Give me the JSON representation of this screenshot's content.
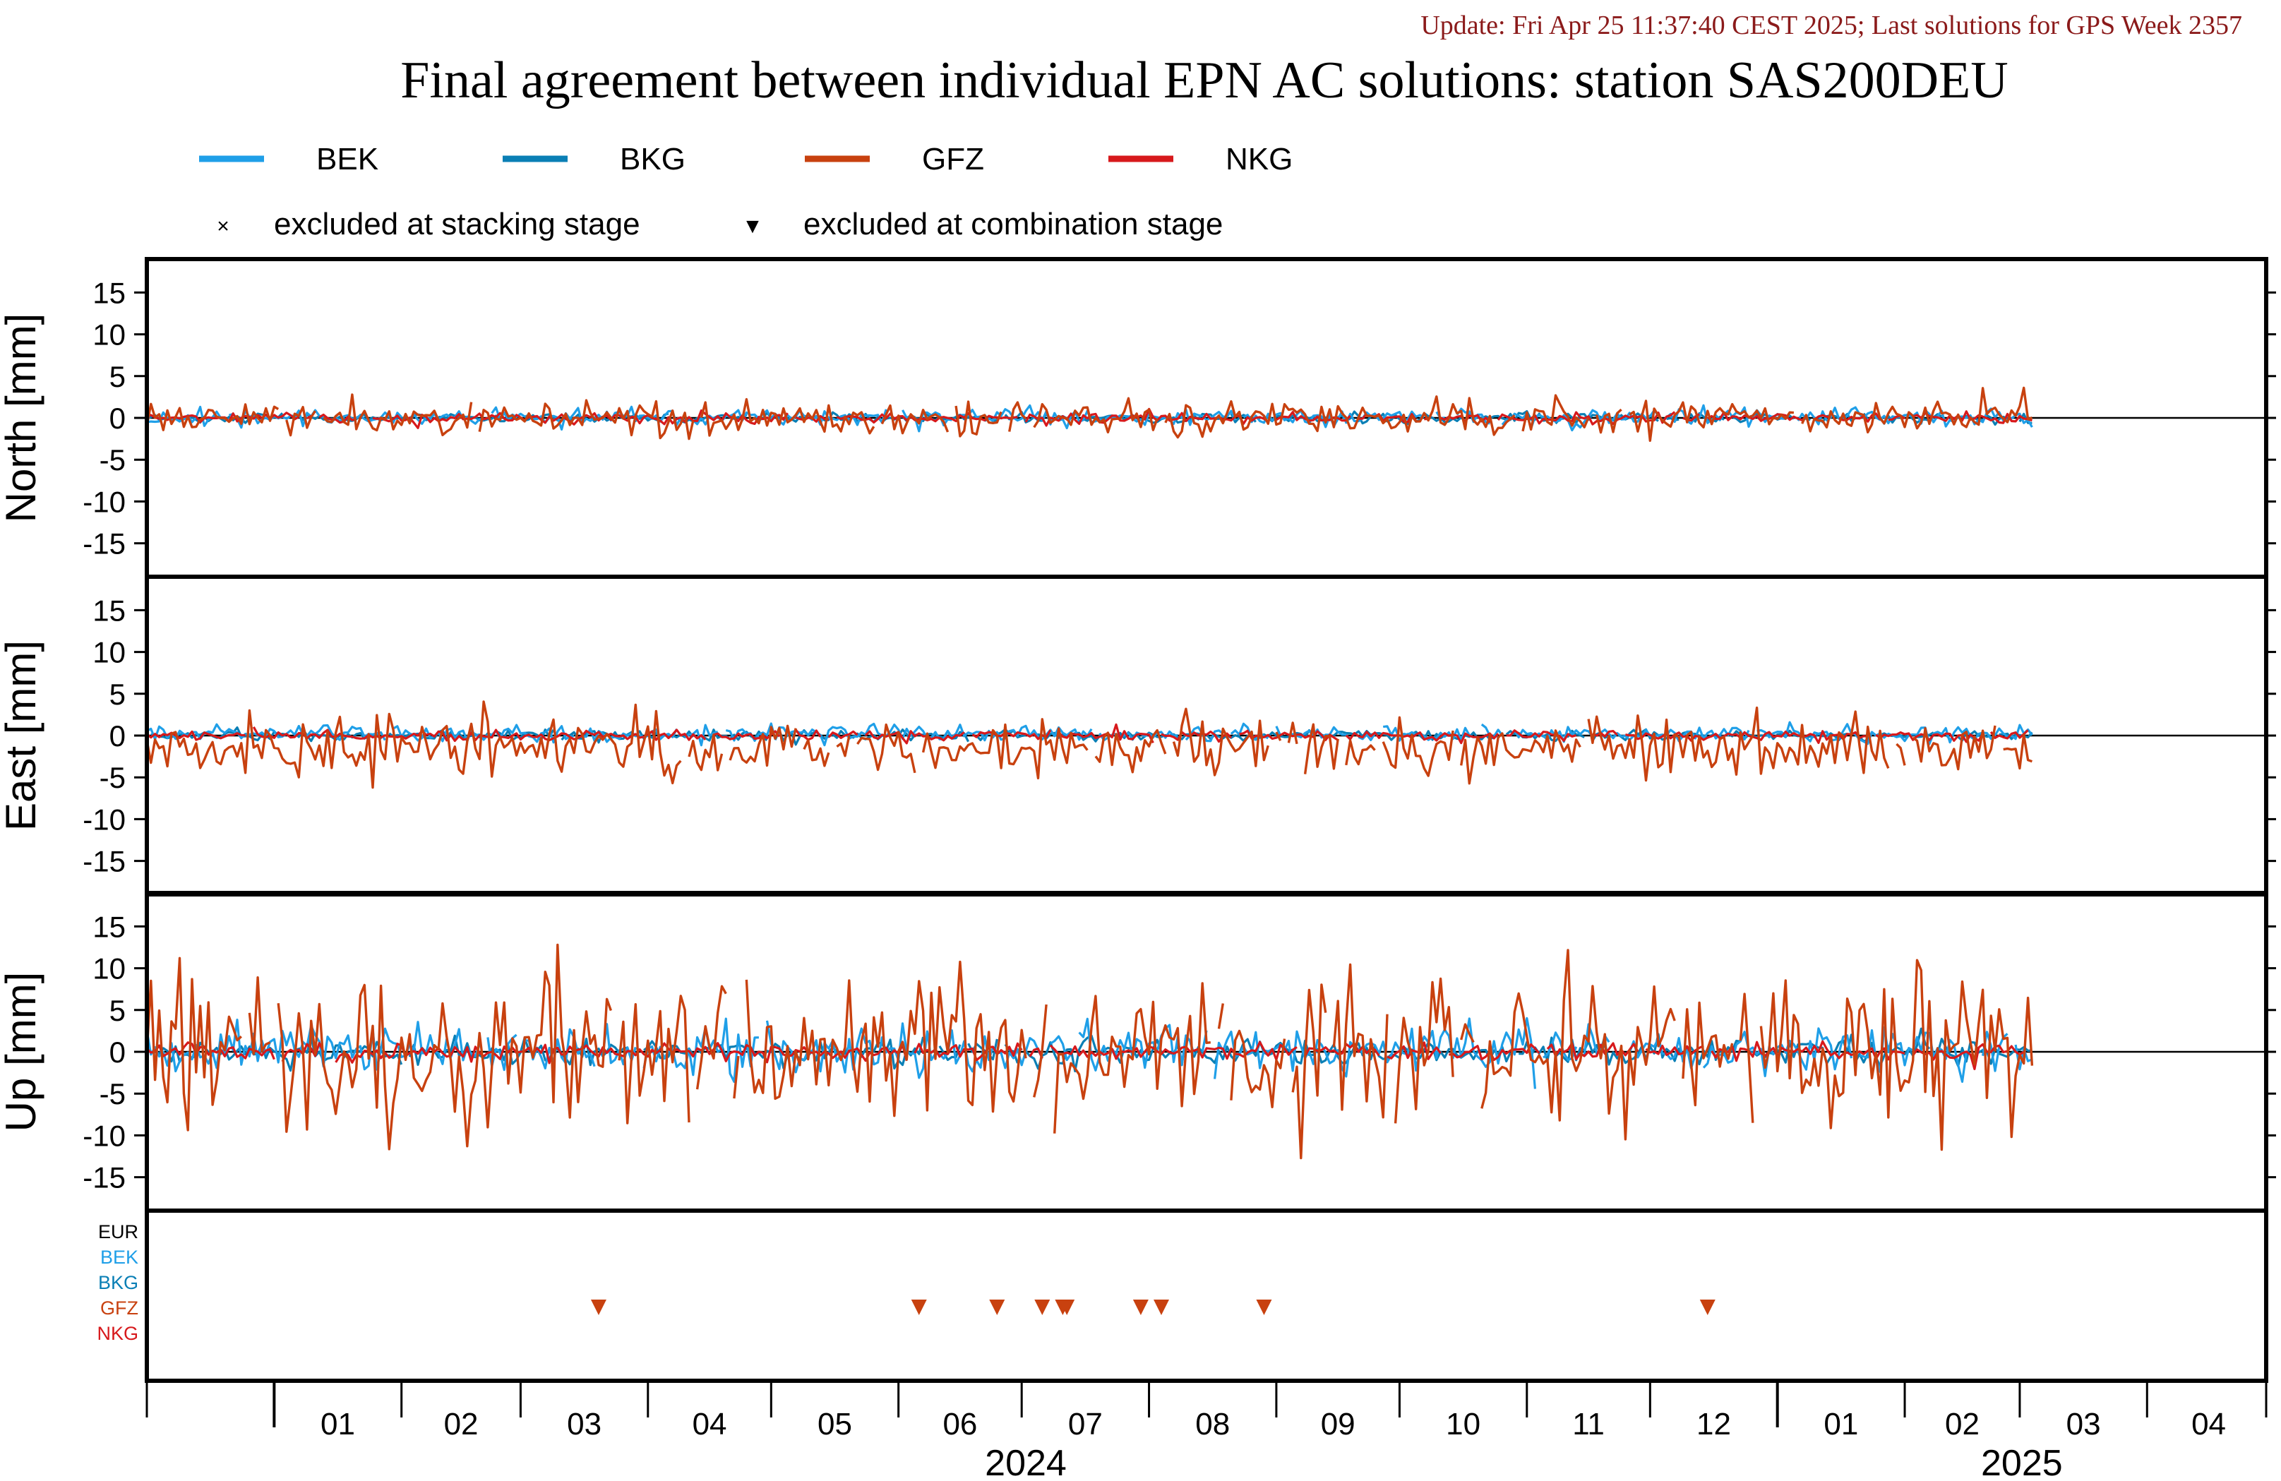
{
  "header": {
    "update": "Update: Fri Apr 25 11:37:40 CEST 2025; Last solutions for GPS Week 2357",
    "title": "Final agreement between individual EPN AC solutions: station SAS200DEU"
  },
  "legend": {
    "series": [
      {
        "name": "BEK",
        "color": "#1f9fe8"
      },
      {
        "name": "BKG",
        "color": "#0a7fb5"
      },
      {
        "name": "GFZ",
        "color": "#c8410f"
      },
      {
        "name": "NKG",
        "color": "#d7191c"
      }
    ],
    "markers": [
      {
        "symbol": "×",
        "label": "excluded at stacking stage"
      },
      {
        "symbol": "▼",
        "label": "excluded at combination stage"
      }
    ]
  },
  "chart_data": {
    "type": "line",
    "x_range": [
      "2023-12-01",
      "2025-04-30"
    ],
    "x_ticks": {
      "months": [
        "01",
        "02",
        "03",
        "04",
        "05",
        "06",
        "07",
        "08",
        "09",
        "10",
        "11",
        "12",
        "01",
        "02",
        "03",
        "04"
      ],
      "years": [
        "2024",
        "2025"
      ],
      "month_starts": [
        "2024-01-01",
        "2024-02-01",
        "2024-03-01",
        "2024-04-01",
        "2024-05-01",
        "2024-06-01",
        "2024-07-01",
        "2024-08-01",
        "2024-09-01",
        "2024-10-01",
        "2024-11-01",
        "2024-12-01",
        "2025-01-01",
        "2025-02-01",
        "2025-03-01",
        "2025-04-01"
      ],
      "year_starts": [
        "2024-01-01",
        "2025-01-01"
      ]
    },
    "panels": [
      {
        "name": "North",
        "ylabel": "North [mm]",
        "ylim": [
          -19,
          19
        ],
        "yticks": [
          "15",
          "10",
          "5",
          "0",
          "-5",
          "-10",
          "-15"
        ],
        "series": [
          {
            "name": "BEK",
            "amplitude": 0.5,
            "bias": 0.1
          },
          {
            "name": "BKG",
            "amplitude": 0.3,
            "bias": 0.0
          },
          {
            "name": "GFZ",
            "amplitude": 1.0,
            "bias": 0.0
          },
          {
            "name": "NKG",
            "amplitude": 0.3,
            "bias": 0.0
          }
        ]
      },
      {
        "name": "East",
        "ylabel": "East [mm]",
        "ylim": [
          -19,
          19
        ],
        "yticks": [
          "15",
          "10",
          "5",
          "0",
          "-5",
          "-10",
          "-15"
        ],
        "series": [
          {
            "name": "BEK",
            "amplitude": 0.5,
            "bias": 0.2
          },
          {
            "name": "BKG",
            "amplitude": 0.3,
            "bias": 0.0
          },
          {
            "name": "GFZ",
            "amplitude": 1.8,
            "bias": -1.5
          },
          {
            "name": "NKG",
            "amplitude": 0.3,
            "bias": 0.0
          }
        ]
      },
      {
        "name": "Up",
        "ylabel": "Up [mm]",
        "ylim": [
          -19,
          19
        ],
        "yticks": [
          "15",
          "10",
          "5",
          "0",
          "-5",
          "-10",
          "-15"
        ],
        "series": [
          {
            "name": "BEK",
            "amplitude": 1.5,
            "bias": 0.3
          },
          {
            "name": "BKG",
            "amplitude": 0.8,
            "bias": 0.0
          },
          {
            "name": "GFZ",
            "amplitude": 4.5,
            "bias": 0.0
          },
          {
            "name": "NKG",
            "amplitude": 0.5,
            "bias": 0.0
          }
        ]
      }
    ],
    "exclusions": {
      "rows": [
        "EUR",
        "BEK",
        "BKG",
        "GFZ",
        "NKG"
      ],
      "row_colors": [
        "#000000",
        "#1f9fe8",
        "#0a7fb5",
        "#c8410f",
        "#d7191c"
      ],
      "combination_stage": [
        {
          "ac": "GFZ",
          "date": "2024-03-20"
        },
        {
          "ac": "GFZ",
          "date": "2024-06-06"
        },
        {
          "ac": "GFZ",
          "date": "2024-06-25"
        },
        {
          "ac": "GFZ",
          "date": "2024-07-06"
        },
        {
          "ac": "GFZ",
          "date": "2024-07-11"
        },
        {
          "ac": "GFZ",
          "date": "2024-07-12"
        },
        {
          "ac": "GFZ",
          "date": "2024-07-30"
        },
        {
          "ac": "GFZ",
          "date": "2024-08-04"
        },
        {
          "ac": "GFZ",
          "date": "2024-08-29"
        },
        {
          "ac": "GFZ",
          "date": "2024-12-15"
        }
      ]
    }
  }
}
